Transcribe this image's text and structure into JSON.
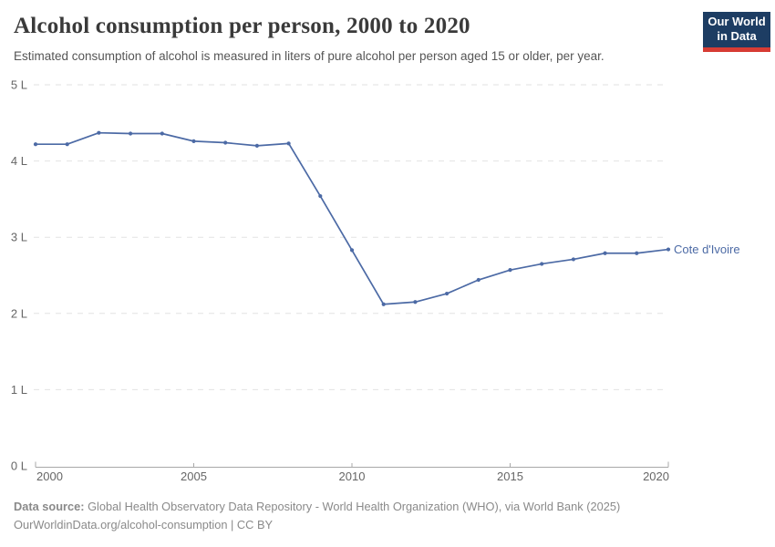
{
  "header": {
    "title": "Alcohol consumption per person, 2000 to 2020",
    "subtitle": "Estimated consumption of alcohol is measured in liters of pure alcohol per person aged 15 or older, per year.",
    "logo": {
      "line1": "Our World",
      "line2": "in Data"
    }
  },
  "chart_data": {
    "type": "line",
    "title": "Alcohol consumption per person, 2000 to 2020",
    "subtitle": "Estimated consumption of alcohol is measured in liters of pure alcohol per person aged 15 or older, per year.",
    "x": [
      2000,
      2001,
      2002,
      2003,
      2004,
      2005,
      2006,
      2007,
      2008,
      2009,
      2010,
      2011,
      2012,
      2013,
      2014,
      2015,
      2016,
      2017,
      2018,
      2019,
      2020
    ],
    "series": [
      {
        "name": "Cote d'Ivoire",
        "color": "#4c6aa5",
        "values": [
          4.22,
          4.22,
          4.37,
          4.36,
          4.36,
          4.26,
          4.24,
          4.2,
          4.23,
          3.54,
          2.83,
          2.12,
          2.15,
          2.26,
          2.44,
          2.57,
          2.65,
          2.71,
          2.79,
          2.79,
          2.84
        ]
      }
    ],
    "xlabel": "",
    "ylabel": "",
    "xlim": [
      2000,
      2020
    ],
    "ylim": [
      0,
      5
    ],
    "x_ticks": [
      2000,
      2005,
      2010,
      2015,
      2020
    ],
    "y_ticks": [
      0,
      1,
      2,
      3,
      4,
      5
    ],
    "y_tick_suffix": " L",
    "grid": "horizontal-dashed",
    "legend_position": "line-end",
    "colors": {
      "grid": "#e2e2e2",
      "axis": "#a8a8a8",
      "tick_label": "#666666"
    }
  },
  "footer": {
    "source_label": "Data source:",
    "source_text": " Global Health Observatory Data Repository - World Health Organization (WHO), via World Bank (2025)",
    "line2": "OurWorldinData.org/alcohol-consumption | CC BY"
  }
}
